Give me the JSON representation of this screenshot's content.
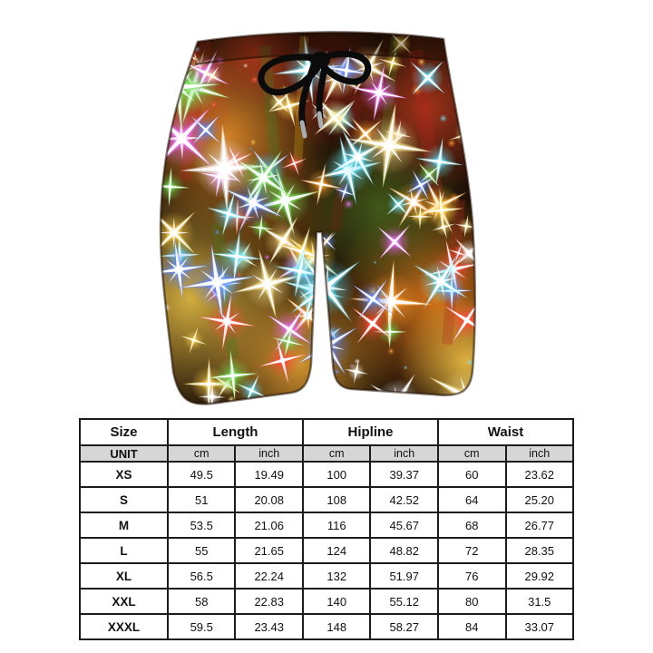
{
  "product_image": {
    "description": "Beach shorts with multicolored Christmas lights bokeh print and a black drawstring tied in a bow",
    "base_color": "#1f1106",
    "background": "#ffffff",
    "drawstring_color": "#0b0b0b",
    "aglet_color": "#a8adb3",
    "palette": [
      "#ffd34d",
      "#ff9d2e",
      "#ff4a3a",
      "#6fe054",
      "#64e4ff",
      "#5b86ff",
      "#ef6bff",
      "#ffffff",
      "#ffe98f"
    ],
    "ambient_colors": [
      "#ff9d2e",
      "#ffd34d",
      "#ffb53a",
      "#c23a1e",
      "#ff8c1f",
      "#7a4a12",
      "#4a6b1f",
      "#8a1f15",
      "#d94a20"
    ]
  },
  "size_chart": {
    "headers": [
      {
        "label": "Size",
        "span": 1
      },
      {
        "label": "Length",
        "span": 2
      },
      {
        "label": "Hipline",
        "span": 2
      },
      {
        "label": "Waist",
        "span": 2
      }
    ],
    "unit_row": {
      "label": "UNIT",
      "units": [
        "cm",
        "inch",
        "cm",
        "inch",
        "cm",
        "inch"
      ]
    },
    "rows": [
      {
        "size": "XS",
        "values": [
          "49.5",
          "19.49",
          "100",
          "39.37",
          "60",
          "23.62"
        ]
      },
      {
        "size": "S",
        "values": [
          "51",
          "20.08",
          "108",
          "42.52",
          "64",
          "25.20"
        ]
      },
      {
        "size": "M",
        "values": [
          "53.5",
          "21.06",
          "116",
          "45.67",
          "68",
          "26.77"
        ]
      },
      {
        "size": "L",
        "values": [
          "55",
          "21.65",
          "124",
          "48.82",
          "72",
          "28.35"
        ]
      },
      {
        "size": "XL",
        "values": [
          "56.5",
          "22.24",
          "132",
          "51.97",
          "76",
          "29.92"
        ]
      },
      {
        "size": "XXL",
        "values": [
          "58",
          "22.83",
          "140",
          "55.12",
          "80",
          "31.5"
        ]
      },
      {
        "size": "XXXL",
        "values": [
          "59.5",
          "23.43",
          "148",
          "58.27",
          "84",
          "33.07"
        ]
      }
    ],
    "colors": {
      "unit_row_bg": "#d6d6d6",
      "border": "#1c1c1c"
    }
  }
}
